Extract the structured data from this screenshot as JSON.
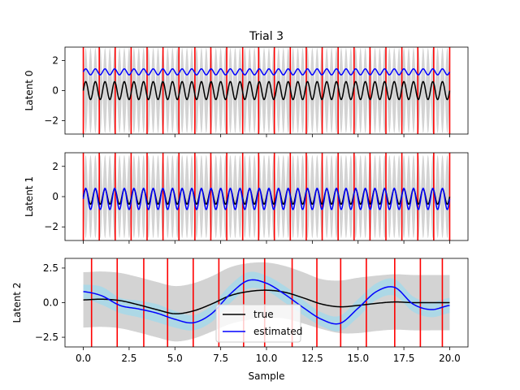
{
  "figure_title": "Trial 3",
  "xlabel": "Sample",
  "colors": {
    "true": "#000000",
    "estimated": "#0000ff",
    "vlines": "#ff0000",
    "band_gray": "#d3d3d3",
    "band_blue": "#add8e6"
  },
  "legend": {
    "true_label": "true",
    "estimated_label": "estimated",
    "location": "lower-center (bottom panel)"
  },
  "chart_data": [
    {
      "type": "line",
      "ylabel": "Latent 0",
      "xlim": [
        -1,
        21
      ],
      "ylim": [
        -2.9,
        2.9
      ],
      "yticks": [
        -2,
        0,
        2
      ],
      "xticks": [
        0,
        2.5,
        5,
        7.5,
        10,
        12.5,
        15,
        17.5,
        20
      ],
      "xticklabels_shown": false,
      "series": [
        {
          "name": "true",
          "shape": "sinusoid",
          "offset": 0.0,
          "amplitude": 0.6,
          "cycles": 38
        },
        {
          "name": "estimated",
          "shape": "sinusoid",
          "offset": 1.25,
          "amplitude": 0.2,
          "cycles": 38
        },
        {
          "name": "uncertainty band",
          "shape": "oscillating band",
          "offset": 0.0,
          "max_halfwidth": 2.8,
          "cycles": 38
        }
      ],
      "vertical_lines": [
        0.0,
        0.87,
        1.74,
        2.61,
        3.48,
        4.35,
        5.22,
        6.09,
        6.96,
        7.83,
        8.7,
        9.57,
        10.43,
        11.3,
        12.17,
        13.04,
        13.91,
        14.78,
        15.65,
        16.52,
        17.39,
        18.26,
        19.13,
        20.0
      ]
    },
    {
      "type": "line",
      "ylabel": "Latent 1",
      "xlim": [
        -1,
        21
      ],
      "ylim": [
        -2.9,
        2.9
      ],
      "yticks": [
        -2,
        0,
        2
      ],
      "xticks": [
        0,
        2.5,
        5,
        7.5,
        10,
        12.5,
        15,
        17.5,
        20
      ],
      "xticklabels_shown": false,
      "series": [
        {
          "name": "true",
          "shape": "sinusoid",
          "offset": 0.0,
          "amplitude": 0.5,
          "cycles": 38
        },
        {
          "name": "estimated",
          "shape": "sinusoid",
          "offset": -0.15,
          "amplitude": 0.7,
          "cycles": 38
        },
        {
          "name": "uncertainty band",
          "shape": "oscillating band",
          "offset": 0.0,
          "max_halfwidth": 2.7,
          "cycles": 38
        }
      ],
      "vertical_lines": [
        0.0,
        0.87,
        1.74,
        2.61,
        3.48,
        4.35,
        5.22,
        6.09,
        6.96,
        7.83,
        8.7,
        9.57,
        10.43,
        11.3,
        12.17,
        13.04,
        13.91,
        14.78,
        15.65,
        16.52,
        17.39,
        18.26,
        19.13,
        20.0
      ]
    },
    {
      "type": "line",
      "ylabel": "Latent 2",
      "xlim": [
        -1,
        21
      ],
      "ylim": [
        -3.2,
        3.2
      ],
      "yticks": [
        -2.5,
        0.0,
        2.5
      ],
      "ytick_labels": [
        "−2.5",
        "0.0",
        "2.5"
      ],
      "xticks": [
        0,
        2.5,
        5,
        7.5,
        10,
        12.5,
        15,
        17.5,
        20
      ],
      "xtick_labels": [
        "0.0",
        "2.5",
        "5.0",
        "7.5",
        "10.0",
        "12.5",
        "15.0",
        "17.5",
        "20.0"
      ],
      "x": [
        0,
        1,
        2,
        3,
        4,
        5,
        6,
        7,
        8,
        9,
        10,
        11,
        12,
        13,
        14,
        15,
        16,
        17,
        18,
        19,
        20
      ],
      "series": [
        {
          "name": "true",
          "y": [
            0.2,
            0.25,
            0.15,
            -0.15,
            -0.5,
            -0.8,
            -0.6,
            -0.1,
            0.5,
            0.8,
            0.9,
            0.75,
            0.35,
            -0.1,
            -0.3,
            -0.2,
            -0.05,
            0.05,
            0.0,
            0.0,
            0.0
          ]
        },
        {
          "name": "estimated",
          "y": [
            0.8,
            0.5,
            -0.2,
            -0.45,
            -0.75,
            -1.2,
            -1.45,
            -0.8,
            0.6,
            1.6,
            1.4,
            0.6,
            -0.35,
            -1.2,
            -1.5,
            -0.4,
            0.8,
            1.1,
            -0.1,
            -0.5,
            -0.2
          ]
        }
      ],
      "gray_band_halfwidth": [
        2.0,
        2.0,
        2.0,
        2.0,
        2.0,
        2.0,
        2.0,
        2.0,
        2.05,
        2.05,
        2.0,
        1.9,
        1.85,
        1.8,
        1.9,
        2.0,
        2.0,
        2.0,
        2.0,
        2.0,
        2.0
      ],
      "blue_band_halfwidth": [
        0.5,
        0.65,
        0.55,
        0.6,
        0.65,
        0.6,
        0.55,
        0.6,
        0.65,
        0.6,
        0.55,
        0.6,
        0.55,
        0.5,
        0.55,
        0.65,
        0.6,
        0.6,
        0.55,
        0.55,
        0.55
      ],
      "vertical_lines": [
        0.45,
        1.85,
        3.3,
        4.6,
        6.0,
        7.4,
        8.75,
        9.9,
        11.4,
        12.75,
        14.05,
        15.45,
        17.0,
        18.4,
        19.6
      ]
    }
  ]
}
